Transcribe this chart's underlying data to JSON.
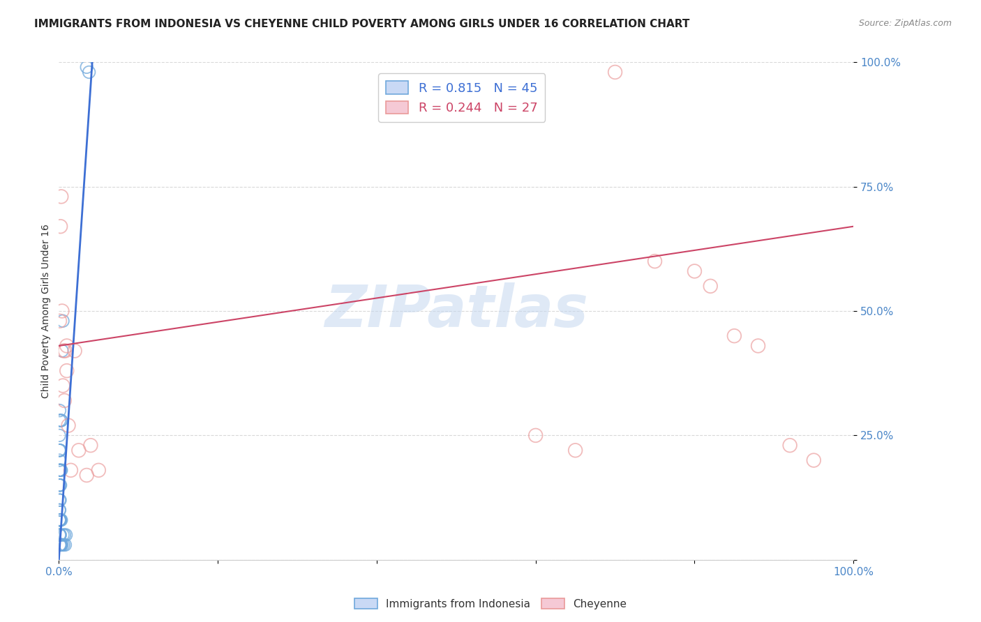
{
  "title": "IMMIGRANTS FROM INDONESIA VS CHEYENNE CHILD POVERTY AMONG GIRLS UNDER 16 CORRELATION CHART",
  "source": "Source: ZipAtlas.com",
  "ylabel": "Child Poverty Among Girls Under 16",
  "blue_R": "0.815",
  "blue_N": "45",
  "pink_R": "0.244",
  "pink_N": "27",
  "blue_color": "#6fa8dc",
  "pink_color": "#ea9999",
  "blue_line_color": "#3d6fd4",
  "pink_line_color": "#cc4466",
  "watermark": "ZIPatlas",
  "legend_label_blue": "Immigrants from Indonesia",
  "legend_label_pink": "Cheyenne",
  "blue_scatter_x": [
    0.0003,
    0.0004,
    0.0005,
    0.0005,
    0.0006,
    0.0006,
    0.0007,
    0.0007,
    0.0008,
    0.0008,
    0.0009,
    0.0009,
    0.001,
    0.001,
    0.001,
    0.001,
    0.0012,
    0.0012,
    0.0013,
    0.0014,
    0.0015,
    0.0015,
    0.0016,
    0.0017,
    0.0018,
    0.002,
    0.002,
    0.0022,
    0.0024,
    0.0025,
    0.0025,
    0.003,
    0.003,
    0.003,
    0.003,
    0.004,
    0.004,
    0.005,
    0.005,
    0.006,
    0.007,
    0.008,
    0.009,
    0.035,
    0.038
  ],
  "blue_scatter_y": [
    0.18,
    0.22,
    0.1,
    0.15,
    0.08,
    0.25,
    0.12,
    0.2,
    0.05,
    0.28,
    0.08,
    0.18,
    0.03,
    0.1,
    0.22,
    0.3,
    0.05,
    0.15,
    0.08,
    0.18,
    0.03,
    0.12,
    0.08,
    0.22,
    0.05,
    0.03,
    0.15,
    0.08,
    0.18,
    0.03,
    0.28,
    0.03,
    0.08,
    0.18,
    0.28,
    0.03,
    0.42,
    0.05,
    0.48,
    0.03,
    0.05,
    0.03,
    0.05,
    0.99,
    0.98
  ],
  "pink_scatter_x": [
    0.001,
    0.002,
    0.003,
    0.004,
    0.005,
    0.006,
    0.007,
    0.008,
    0.01,
    0.01,
    0.012,
    0.015,
    0.02,
    0.025,
    0.035,
    0.04,
    0.05,
    0.6,
    0.65,
    0.7,
    0.75,
    0.8,
    0.82,
    0.85,
    0.88,
    0.92,
    0.95
  ],
  "pink_scatter_y": [
    0.48,
    0.67,
    0.73,
    0.5,
    0.35,
    0.42,
    0.32,
    0.42,
    0.43,
    0.38,
    0.27,
    0.18,
    0.42,
    0.22,
    0.17,
    0.23,
    0.18,
    0.25,
    0.22,
    0.98,
    0.6,
    0.58,
    0.55,
    0.45,
    0.43,
    0.23,
    0.2
  ],
  "blue_line_x": [
    0.0,
    0.042
  ],
  "blue_line_y": [
    0.0,
    1.0
  ],
  "pink_line_x": [
    0.0,
    1.0
  ],
  "pink_line_y": [
    0.43,
    0.67
  ],
  "background_color": "#ffffff",
  "grid_color": "#d9d9d9",
  "title_color": "#222222",
  "axis_tick_color": "#4a86c8",
  "yticks": [
    0.0,
    0.25,
    0.5,
    0.75,
    1.0
  ],
  "ytick_labels": [
    "",
    "25.0%",
    "50.0%",
    "75.0%",
    "100.0%"
  ],
  "xticks": [
    0.0,
    0.2,
    0.4,
    0.6,
    0.8,
    1.0
  ],
  "xtick_labels": [
    "0.0%",
    "",
    "",
    "",
    "",
    "100.0%"
  ],
  "title_fontsize": 11,
  "label_fontsize": 10,
  "tick_fontsize": 11,
  "source_fontsize": 9
}
